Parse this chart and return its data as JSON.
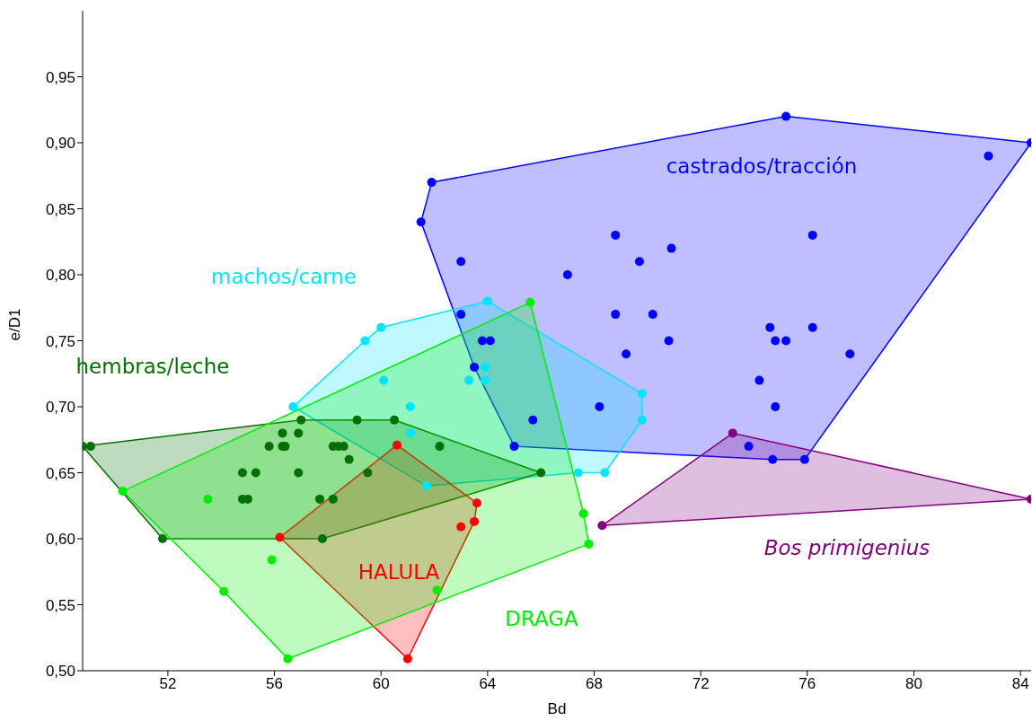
{
  "chart_data": {
    "type": "scatter",
    "xlabel": "Bd",
    "ylabel": "e/D1",
    "xlim": [
      48.8,
      84.4
    ],
    "ylim": [
      0.5,
      1.0
    ],
    "xticks": [
      52,
      56,
      60,
      64,
      68,
      72,
      76,
      80,
      84
    ],
    "yticks": [
      {
        "value": 0.5,
        "label": "0,50"
      },
      {
        "value": 0.55,
        "label": "0,55"
      },
      {
        "value": 0.6,
        "label": "0,60"
      },
      {
        "value": 0.65,
        "label": "0,65"
      },
      {
        "value": 0.7,
        "label": "0,70"
      },
      {
        "value": 0.75,
        "label": "0,75"
      },
      {
        "value": 0.8,
        "label": "0,80"
      },
      {
        "value": 0.85,
        "label": "0,85"
      },
      {
        "value": 0.9,
        "label": "0,90"
      },
      {
        "value": 0.95,
        "label": "0,95"
      }
    ],
    "grid": false,
    "legend": false,
    "marker": "circle",
    "series": [
      {
        "name": "castrados/tracción",
        "color": "#0000ff",
        "x": [
          61.9,
          61.5,
          63.0,
          63.0,
          63.8,
          64.1,
          63.5,
          65.0,
          65.7,
          67.0,
          68.2,
          68.8,
          68.8,
          69.2,
          69.7,
          70.2,
          70.8,
          70.9,
          73.8,
          74.2,
          74.6,
          74.8,
          75.2,
          74.8,
          74.7,
          75.2,
          75.9,
          76.2,
          76.2,
          77.6,
          82.8,
          84.4
        ],
        "values": [
          0.87,
          0.84,
          0.81,
          0.77,
          0.75,
          0.75,
          0.73,
          0.67,
          0.69,
          0.8,
          0.7,
          0.83,
          0.77,
          0.74,
          0.81,
          0.77,
          0.75,
          0.82,
          0.67,
          0.72,
          0.76,
          0.75,
          0.75,
          0.7,
          0.66,
          0.92,
          0.66,
          0.76,
          0.83,
          0.74,
          0.89,
          0.9
        ]
      },
      {
        "name": "machos/carne",
        "color": "#00e5ff",
        "x": [
          56.7,
          59.4,
          60.0,
          60.1,
          61.1,
          61.1,
          61.7,
          63.3,
          63.9,
          63.9,
          64.0,
          67.4,
          68.4,
          69.8,
          69.8
        ],
        "values": [
          0.7,
          0.75,
          0.76,
          0.72,
          0.7,
          0.68,
          0.64,
          0.72,
          0.73,
          0.72,
          0.78,
          0.65,
          0.65,
          0.71,
          0.69
        ]
      },
      {
        "name": "hembras/leche",
        "color": "#007000",
        "x": [
          48.8,
          49.1,
          57.0,
          59.1,
          60.5,
          56.3,
          56.9,
          55.8,
          56.3,
          56.4,
          58.2,
          58.4,
          58.6,
          58.8,
          54.8,
          55.3,
          56.9,
          59.5,
          54.8,
          55.0,
          57.7,
          58.2,
          51.8,
          57.8,
          62.2,
          66.0
        ],
        "values": [
          0.67,
          0.67,
          0.69,
          0.69,
          0.69,
          0.68,
          0.68,
          0.67,
          0.67,
          0.67,
          0.67,
          0.67,
          0.67,
          0.66,
          0.65,
          0.65,
          0.65,
          0.65,
          0.63,
          0.63,
          0.63,
          0.63,
          0.6,
          0.6,
          0.67,
          0.65
        ]
      },
      {
        "name": "HALULA",
        "color": "#ff0000",
        "x": [
          60.6,
          56.2,
          63.6,
          63.5,
          63.0,
          61.0
        ],
        "values": [
          0.671,
          0.601,
          0.627,
          0.613,
          0.609,
          0.509
        ]
      },
      {
        "name": "DRAGA",
        "color": "#00ee00",
        "x": [
          50.3,
          53.5,
          54.1,
          55.9,
          56.5,
          62.1,
          65.6,
          67.6,
          67.8
        ],
        "values": [
          0.636,
          0.63,
          0.56,
          0.584,
          0.509,
          0.561,
          0.779,
          0.619,
          0.596
        ]
      },
      {
        "name": "Bos primigenius",
        "color": "#800080",
        "x": [
          73.2,
          68.3,
          84.4
        ],
        "values": [
          0.68,
          0.61,
          0.63
        ]
      },
      {
        "type": "area",
        "marker": "none",
        "color": "#0000ff",
        "x": [
          61.5,
          61.9,
          75.2,
          84.4,
          75.9,
          74.7,
          65.0,
          63.5
        ],
        "values": [
          0.84,
          0.87,
          0.92,
          0.9,
          0.66,
          0.66,
          0.67,
          0.73
        ]
      },
      {
        "type": "area",
        "marker": "none",
        "color": "#00e5ff",
        "x": [
          56.7,
          59.4,
          60.0,
          64.0,
          69.8,
          69.8,
          68.4,
          67.4,
          61.7
        ],
        "values": [
          0.7,
          0.75,
          0.76,
          0.78,
          0.71,
          0.69,
          0.65,
          0.65,
          0.64
        ]
      },
      {
        "type": "area",
        "marker": "none",
        "color": "#007000",
        "x": [
          48.8,
          57.0,
          60.5,
          66.0,
          57.8,
          51.8
        ],
        "values": [
          0.67,
          0.69,
          0.69,
          0.65,
          0.6,
          0.6
        ]
      },
      {
        "type": "area",
        "marker": "none",
        "color": "#ff0000",
        "x": [
          60.6,
          63.6,
          63.5,
          61.0,
          56.2
        ],
        "values": [
          0.671,
          0.627,
          0.613,
          0.509,
          0.601
        ]
      },
      {
        "type": "area",
        "marker": "none",
        "color": "#00ee00",
        "x": [
          50.3,
          65.6,
          67.6,
          67.8,
          56.5,
          54.1
        ],
        "values": [
          0.636,
          0.779,
          0.619,
          0.596,
          0.509,
          0.56
        ]
      },
      {
        "type": "area",
        "marker": "none",
        "color": "#800080",
        "x": [
          73.2,
          84.4,
          68.3
        ],
        "values": [
          0.68,
          0.63,
          0.61
        ]
      }
    ]
  }
}
